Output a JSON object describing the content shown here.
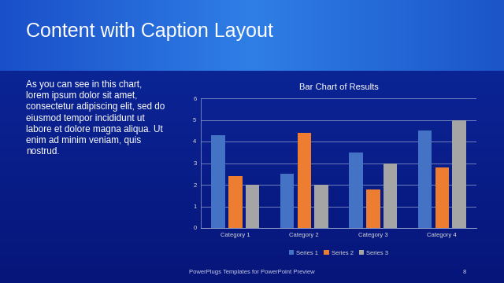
{
  "slide": {
    "title": "Content with Caption Layout",
    "caption": [
      "As you can see in this chart,",
      "lorem ipsum dolor sit amet,",
      "consectetur adipiscing elit, sed do",
      "eiusmod tempor incididunt ut",
      "labore et dolore magna aliqua. Ut",
      "enim ad minim veniam, quis",
      "nostrud."
    ],
    "footer": "PowerPlugs Templates for PowerPoint Preview",
    "page": 8
  },
  "chart_data": {
    "type": "bar",
    "title": "Bar Chart of Results",
    "categories": [
      "Category 1",
      "Category 2",
      "Category 3",
      "Category 4"
    ],
    "series": [
      {
        "name": "Series 1",
        "color": "#4472c4",
        "values": [
          4.3,
          2.5,
          3.5,
          4.5
        ]
      },
      {
        "name": "Series 2",
        "color": "#ed7d31",
        "values": [
          2.4,
          4.4,
          1.8,
          2.8
        ]
      },
      {
        "name": "Series 3",
        "color": "#a5a5a5",
        "values": [
          2,
          2,
          3,
          5
        ]
      }
    ],
    "ylim": [
      0,
      6
    ],
    "yticks": [
      0,
      1,
      2,
      3,
      4,
      5,
      6
    ],
    "grid": true,
    "legend": "bottom"
  }
}
